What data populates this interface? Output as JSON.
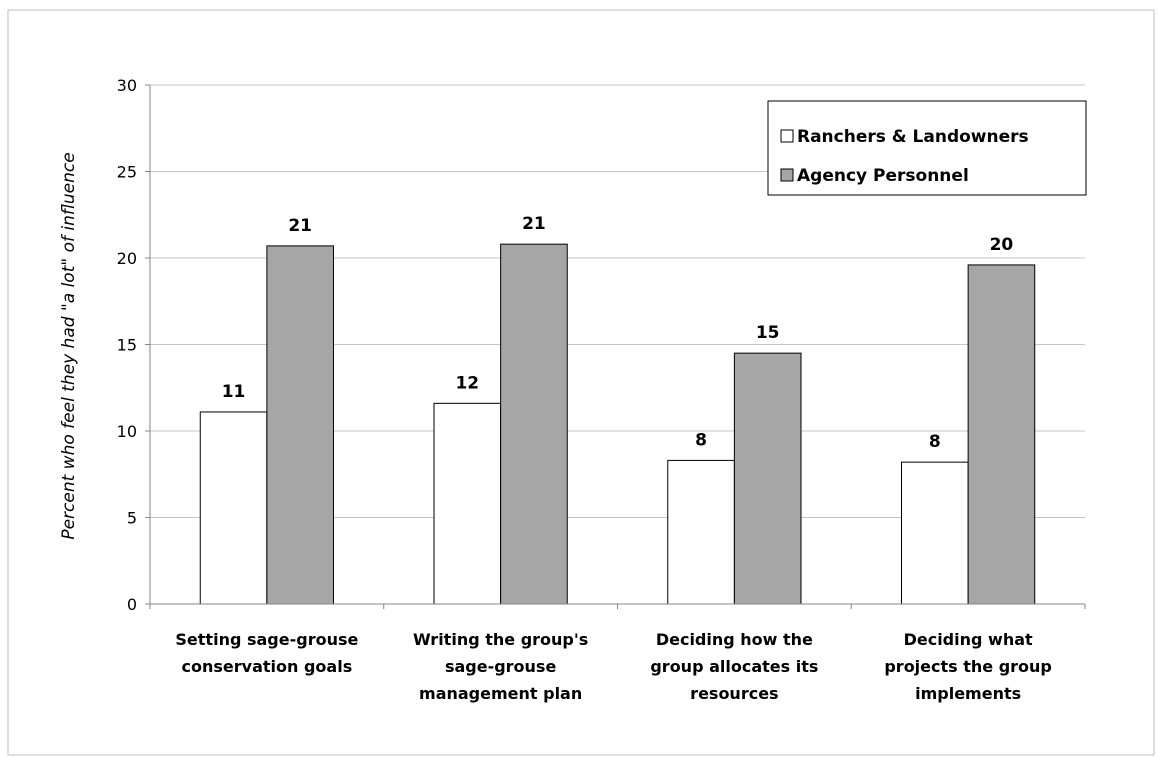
{
  "chart_data": {
    "type": "bar",
    "title": "",
    "xlabel": "",
    "ylabel": "Percent who feel they had \"a lot\" of influence",
    "ylim": [
      0,
      30
    ],
    "yticks": [
      "0",
      "5",
      "10",
      "15",
      "20",
      "25",
      "30"
    ],
    "grid": true,
    "legend_position": "top-right",
    "categories": [
      [
        "Setting sage-grouse",
        "conservation goals"
      ],
      [
        "Writing the group's",
        "sage-grouse",
        "management plan"
      ],
      [
        "Deciding how the",
        "group allocates its",
        "resources"
      ],
      [
        "Deciding what",
        "projects the group",
        "implements"
      ]
    ],
    "series": [
      {
        "name": "Ranchers & Landowners",
        "color": "#ffffff",
        "values": [
          11.1,
          11.6,
          8.3,
          8.2
        ],
        "labels": [
          "11",
          "12",
          "8",
          "8"
        ]
      },
      {
        "name": "Agency Personnel",
        "color": "#a6a6a6",
        "values": [
          20.7,
          20.8,
          14.5,
          19.6
        ],
        "labels": [
          "21",
          "21",
          "15",
          "20"
        ]
      }
    ]
  }
}
